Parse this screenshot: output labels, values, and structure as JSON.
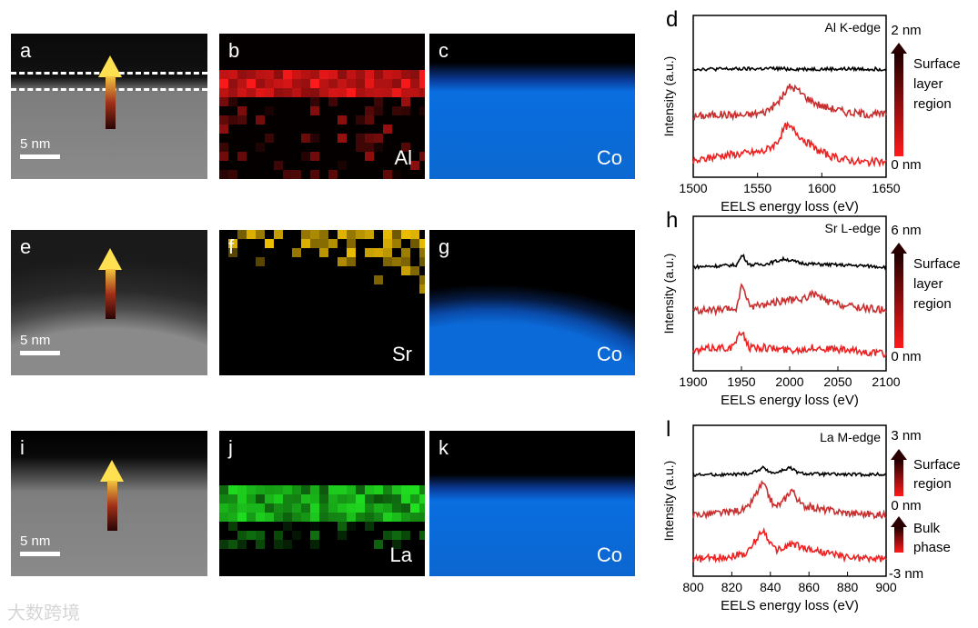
{
  "panels": {
    "a": {
      "label": "a",
      "scale": "5 nm"
    },
    "b": {
      "label": "b",
      "element": "Al"
    },
    "c": {
      "label": "c",
      "element": "Co"
    },
    "e": {
      "label": "e",
      "scale": "5 nm"
    },
    "f": {
      "label": "f",
      "element": "Sr"
    },
    "g": {
      "label": "g",
      "element": "Co"
    },
    "i": {
      "label": "i",
      "scale": "5 nm"
    },
    "j": {
      "label": "j",
      "element": "La"
    },
    "k": {
      "label": "k",
      "element": "Co"
    }
  },
  "chart_data": [
    {
      "type": "line",
      "panel_label": "d",
      "title": "Al K-edge",
      "xlabel": "EELS energy loss (eV)",
      "ylabel": "Intensity (a.u.)",
      "xlim": [
        1500,
        1650
      ],
      "xticks": [
        1500,
        1550,
        1600,
        1650
      ],
      "colorbar": {
        "top": "2 nm",
        "bottom": "0 nm",
        "text": [
          "Surface",
          "layer",
          "region"
        ]
      },
      "series": [
        {
          "color": "#000000",
          "offset": 2,
          "x": [
            1500,
            1520,
            1540,
            1560,
            1580,
            1600,
            1620,
            1640,
            1650
          ],
          "y": [
            0.05,
            0.05,
            0.05,
            0.06,
            0.05,
            0.05,
            0.05,
            0.05,
            0.05
          ]
        },
        {
          "color": "#c83030",
          "offset": 1,
          "x": [
            1500,
            1520,
            1540,
            1555,
            1565,
            1575,
            1580,
            1590,
            1600,
            1620,
            1640,
            1650
          ],
          "y": [
            0.05,
            0.1,
            0.08,
            0.15,
            0.35,
            0.75,
            0.7,
            0.45,
            0.3,
            0.15,
            0.1,
            0.1
          ]
        },
        {
          "color": "#ee2222",
          "offset": 0,
          "x": [
            1500,
            1520,
            1540,
            1555,
            1565,
            1572,
            1578,
            1585,
            1595,
            1610,
            1630,
            1650
          ],
          "y": [
            0.1,
            0.25,
            0.3,
            0.35,
            0.55,
            0.95,
            0.85,
            0.65,
            0.4,
            0.2,
            0.1,
            0.1
          ]
        }
      ]
    },
    {
      "type": "line",
      "panel_label": "h",
      "title": "Sr L-edge",
      "xlabel": "EELS energy loss (eV)",
      "ylabel": "Intensity (a.u.)",
      "xlim": [
        1900,
        2100
      ],
      "xticks": [
        1900,
        1950,
        2000,
        2050,
        2100
      ],
      "colorbar": {
        "top": "6 nm",
        "bottom": "0 nm",
        "text": [
          "Surface",
          "layer",
          "region"
        ]
      },
      "series": [
        {
          "color": "#000000",
          "offset": 2,
          "x": [
            1900,
            1930,
            1945,
            1951,
            1958,
            1975,
            1995,
            2010,
            2025,
            2050,
            2075,
            2100
          ],
          "y": [
            0.05,
            0.08,
            0.1,
            0.35,
            0.1,
            0.12,
            0.25,
            0.15,
            0.12,
            0.1,
            0.08,
            0.05
          ]
        },
        {
          "color": "#c83030",
          "offset": 1,
          "x": [
            1900,
            1930,
            1945,
            1951,
            1958,
            1975,
            1995,
            2010,
            2025,
            2040,
            2060,
            2080,
            2100
          ],
          "y": [
            0.1,
            0.1,
            0.15,
            0.75,
            0.2,
            0.25,
            0.35,
            0.35,
            0.5,
            0.3,
            0.2,
            0.15,
            0.1
          ]
        },
        {
          "color": "#ee2222",
          "offset": 0,
          "x": [
            1900,
            1920,
            1940,
            1951,
            1958,
            1975,
            1995,
            2010,
            2025,
            2050,
            2075,
            2100
          ],
          "y": [
            0.2,
            0.3,
            0.3,
            0.7,
            0.3,
            0.3,
            0.25,
            0.25,
            0.3,
            0.25,
            0.2,
            0.15
          ]
        }
      ]
    },
    {
      "type": "line",
      "panel_label": "l",
      "title": "La M-edge",
      "xlabel": "EELS energy loss (eV)",
      "ylabel": "Intensity (a.u.)",
      "xlim": [
        800,
        900
      ],
      "xticks": [
        800,
        820,
        840,
        860,
        880,
        900
      ],
      "colorbar": {
        "top": "3 nm",
        "middle": "0 nm",
        "bottom": "-3 nm",
        "text_upper": [
          "Surface",
          "region"
        ],
        "text_lower": [
          "Bulk",
          "phase"
        ]
      },
      "series": [
        {
          "color": "#000000",
          "offset": 2,
          "x": [
            800,
            820,
            830,
            836,
            842,
            850,
            855,
            865,
            880,
            900
          ],
          "y": [
            0.05,
            0.05,
            0.08,
            0.22,
            0.08,
            0.22,
            0.08,
            0.06,
            0.05,
            0.05
          ]
        },
        {
          "color": "#c83030",
          "offset": 1,
          "x": [
            800,
            815,
            828,
            836,
            842,
            846,
            851,
            856,
            865,
            880,
            900
          ],
          "y": [
            0.15,
            0.2,
            0.3,
            0.95,
            0.35,
            0.45,
            0.8,
            0.4,
            0.3,
            0.2,
            0.15
          ]
        },
        {
          "color": "#ee2222",
          "offset": 0,
          "x": [
            800,
            815,
            828,
            836,
            842,
            846,
            851,
            856,
            865,
            880,
            900
          ],
          "y": [
            0.15,
            0.2,
            0.3,
            0.9,
            0.4,
            0.4,
            0.55,
            0.45,
            0.35,
            0.2,
            0.15
          ]
        }
      ]
    }
  ],
  "watermark": "大数跨境",
  "colors": {
    "al": "#ff1a1a",
    "sr": "#ffcc00",
    "la": "#22ee22",
    "co": "#0a6ee0"
  }
}
